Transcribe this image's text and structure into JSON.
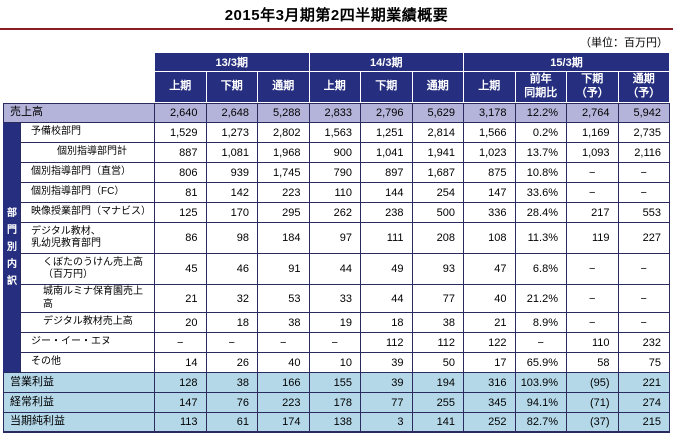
{
  "page": {
    "title": "2015年3月期第2四半期業績概要",
    "unit_note": "（単位：百万円）"
  },
  "colors": {
    "header_bg": "#262f7f",
    "sales_row_bg": "#b4b4da",
    "profit_row_bg": "#b5d8e9",
    "grid_line": "#2a2a5e",
    "title_rule": "#8b1d22"
  },
  "table": {
    "side_label": "部門別内訳",
    "col_groups": [
      {
        "label": "13/3期",
        "span": 3
      },
      {
        "label": "14/3期",
        "span": 3
      },
      {
        "label": "15/3期",
        "span": 4
      }
    ],
    "sub_headers": [
      "上期",
      "下期",
      "通期",
      "上期",
      "下期",
      "通期",
      "上期",
      "前年\n同期比",
      "下期\n（予）",
      "通期\n（予）"
    ],
    "rows": [
      {
        "label": "売上高",
        "type": "sales",
        "indent": 0,
        "values": [
          "2,640",
          "2,648",
          "5,288",
          "2,833",
          "2,796",
          "5,629",
          "3,178",
          "12.2%",
          "2,764",
          "5,942"
        ]
      },
      {
        "label": "予備校部門",
        "type": "dept",
        "indent": 1,
        "values": [
          "1,529",
          "1,273",
          "2,802",
          "1,563",
          "1,251",
          "2,814",
          "1,566",
          "0.2%",
          "1,169",
          "2,735"
        ]
      },
      {
        "label": "個別指導部門計",
        "type": "dept",
        "indent": 3,
        "values": [
          "887",
          "1,081",
          "1,968",
          "900",
          "1,041",
          "1,941",
          "1,023",
          "13.7%",
          "1,093",
          "2,116"
        ]
      },
      {
        "label": "個別指導部門（直営）",
        "type": "dept",
        "indent": 1,
        "values": [
          "806",
          "939",
          "1,745",
          "790",
          "897",
          "1,687",
          "875",
          "10.8%",
          "−",
          "−"
        ]
      },
      {
        "label": "個別指導部門（FC）",
        "type": "dept",
        "indent": 1,
        "values": [
          "81",
          "142",
          "223",
          "110",
          "144",
          "254",
          "147",
          "33.6%",
          "−",
          "−"
        ]
      },
      {
        "label": "映像授業部門（マナビス）",
        "type": "dept",
        "indent": 1,
        "values": [
          "125",
          "170",
          "295",
          "262",
          "238",
          "500",
          "336",
          "28.4%",
          "217",
          "553"
        ]
      },
      {
        "label": "デジタル教材、\n乳幼児教育部門",
        "type": "dept",
        "indent": 1,
        "values": [
          "86",
          "98",
          "184",
          "97",
          "111",
          "208",
          "108",
          "11.3%",
          "119",
          "227"
        ]
      },
      {
        "label": "くぼたのうけん売上高\n（百万円）",
        "type": "dept",
        "indent": 2,
        "values": [
          "45",
          "46",
          "91",
          "44",
          "49",
          "93",
          "47",
          "6.8%",
          "−",
          "−"
        ]
      },
      {
        "label": "城南ルミナ保育園売上高",
        "type": "dept",
        "indent": 2,
        "values": [
          "21",
          "32",
          "53",
          "33",
          "44",
          "77",
          "40",
          "21.2%",
          "−",
          "−"
        ]
      },
      {
        "label": "デジタル教材売上高",
        "type": "dept",
        "indent": 2,
        "values": [
          "20",
          "18",
          "38",
          "19",
          "18",
          "38",
          "21",
          "8.9%",
          "−",
          "−"
        ]
      },
      {
        "label": "ジー・イー・エヌ",
        "type": "dept",
        "indent": 1,
        "values": [
          "−",
          "−",
          "−",
          "−",
          "112",
          "112",
          "122",
          "−",
          "110",
          "232"
        ]
      },
      {
        "label": "その他",
        "type": "dept",
        "indent": 1,
        "values": [
          "14",
          "26",
          "40",
          "10",
          "39",
          "50",
          "17",
          "65.9%",
          "58",
          "75"
        ]
      },
      {
        "label": "営業利益",
        "type": "profit",
        "indent": 0,
        "values": [
          "128",
          "38",
          "166",
          "155",
          "39",
          "194",
          "316",
          "103.9%",
          "(95)",
          "221"
        ]
      },
      {
        "label": "経常利益",
        "type": "profit",
        "indent": 0,
        "values": [
          "147",
          "76",
          "223",
          "178",
          "77",
          "255",
          "345",
          "94.1%",
          "(71)",
          "274"
        ]
      },
      {
        "label": "当期純利益",
        "type": "profit",
        "indent": 0,
        "values": [
          "113",
          "61",
          "174",
          "138",
          "3",
          "141",
          "252",
          "82.7%",
          "(37)",
          "215"
        ]
      }
    ]
  }
}
